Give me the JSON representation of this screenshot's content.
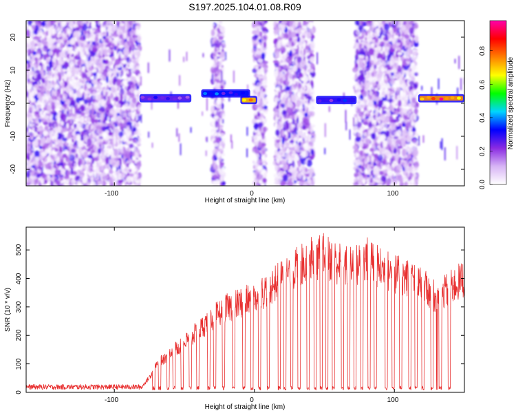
{
  "title": "S197.2025.104.01.08.R09",
  "chart_data": [
    {
      "type": "heatmap",
      "xlabel": "Height of straight line (km)",
      "ylabel": "Frequency (Hz)",
      "xlim": [
        -163,
        150
      ],
      "ylim": [
        -25,
        25
      ],
      "xticks": [
        -100,
        0,
        100
      ],
      "xtick_labels": [
        "-100",
        "0",
        "100"
      ],
      "yticks": [
        20,
        10,
        0,
        -10,
        -20
      ],
      "ytick_labels": [
        "20",
        "10",
        "0",
        "-10",
        "-20"
      ],
      "colorbar": {
        "label": "Normalized spectral amplitude",
        "range": [
          0,
          0.98
        ],
        "ticks": [
          0,
          0.2,
          0.4,
          0.6,
          0.8
        ],
        "tick_labels": [
          "0.0",
          "0.2",
          "0.4",
          "0.6",
          "0.8"
        ],
        "colors": [
          "#ffffff",
          "#d7b4f5",
          "#8a2be2",
          "#0000ff",
          "#00d5ff",
          "#00ff00",
          "#ffff00",
          "#ff7f00",
          "#ff0000",
          "#ff00aa"
        ]
      },
      "noise_regions": [
        [
          -163,
          -82
        ],
        [
          -30,
          -22
        ],
        [
          0,
          8
        ],
        [
          15,
          42
        ],
        [
          72,
          116
        ]
      ],
      "signal_segments": [
        {
          "x": [
            -82,
            -45
          ],
          "freq": 1.5,
          "amplitude": 0.3
        },
        {
          "x": [
            -38,
            -3
          ],
          "freq": 3.0,
          "amplitude": 0.4
        },
        {
          "x": [
            -10,
            2
          ],
          "freq": 1.0,
          "amplitude": 0.85
        },
        {
          "x": [
            44,
            73
          ],
          "freq": 1.0,
          "amplitude": 0.35
        },
        {
          "x": [
            117,
            150
          ],
          "freq": 1.5,
          "amplitude": 0.9
        }
      ]
    },
    {
      "type": "line",
      "xlabel": "Height of straight line (km)",
      "ylabel": "SNR (10 * v/v)",
      "xlim": [
        -163,
        150
      ],
      "ylim": [
        0,
        580
      ],
      "xticks": [
        -100,
        0,
        100
      ],
      "xtick_labels": [
        "-100",
        "0",
        "100"
      ],
      "yticks": [
        0,
        100,
        200,
        300,
        400,
        500
      ],
      "ytick_labels": [
        "0",
        "100",
        "200",
        "300",
        "400",
        "500"
      ],
      "series_color": "#e83030",
      "envelope": {
        "x": [
          -163,
          -80,
          -75,
          -70,
          -60,
          -50,
          -40,
          -30,
          -20,
          -10,
          0,
          10,
          20,
          30,
          40,
          50,
          60,
          70,
          80,
          90,
          100,
          110,
          120,
          130,
          140,
          150
        ],
        "y": [
          20,
          25,
          60,
          110,
          160,
          200,
          250,
          300,
          340,
          360,
          380,
          420,
          460,
          500,
          540,
          550,
          520,
          500,
          540,
          500,
          480,
          460,
          430,
          380,
          420,
          460
        ]
      }
    }
  ]
}
